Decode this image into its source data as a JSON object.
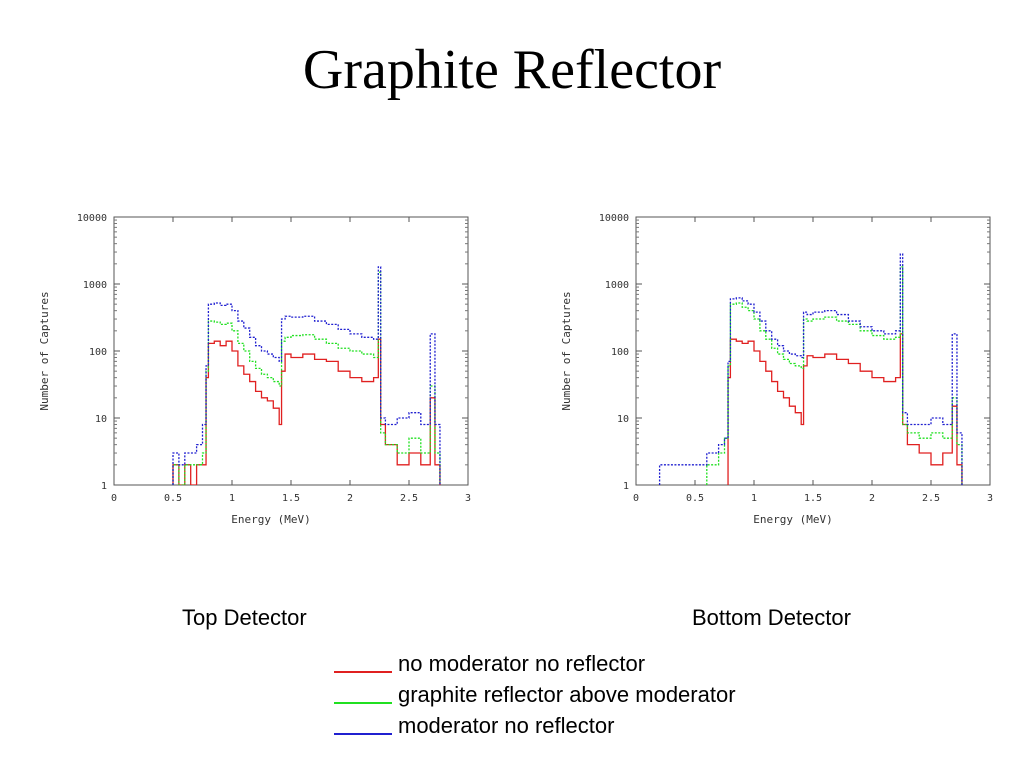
{
  "title": "Graphite Reflector",
  "captions": {
    "top": "Top Detector",
    "bottom": "Bottom Detector"
  },
  "legend": [
    {
      "label": "no moderator no reflector",
      "color": "#e02020",
      "swatch_text": "____"
    },
    {
      "label": "graphite reflector above moderator",
      "color": "#20e020",
      "swatch_text": "____"
    },
    {
      "label": "moderator no reflector",
      "color": "#2020d0",
      "swatch_text": "____"
    }
  ],
  "chart_data": [
    {
      "type": "line",
      "step": true,
      "name": "Top Detector",
      "xlabel": "Energy (MeV)",
      "ylabel": "Number of Captures",
      "xlim": [
        0,
        3
      ],
      "ylim": [
        1,
        10000
      ],
      "yscale": "log",
      "xticks": [
        "0",
        "0.5",
        "1",
        "1.5",
        "2",
        "2.5",
        "3"
      ],
      "yticks": [
        "1",
        "10",
        "100",
        "1000",
        "10000"
      ],
      "series": [
        {
          "color": "#e02020",
          "dash": "solid",
          "x": [
            0.5,
            0.55,
            0.6,
            0.65,
            0.7,
            0.75,
            0.78,
            0.8,
            0.85,
            0.9,
            0.95,
            1.0,
            1.05,
            1.1,
            1.15,
            1.2,
            1.25,
            1.3,
            1.35,
            1.4,
            1.42,
            1.45,
            1.5,
            1.6,
            1.7,
            1.8,
            1.9,
            2.0,
            2.1,
            2.2,
            2.24,
            2.26,
            2.3,
            2.4,
            2.5,
            2.6,
            2.68,
            2.72
          ],
          "y": [
            2,
            1,
            2,
            1,
            2,
            2,
            40,
            130,
            140,
            120,
            140,
            100,
            60,
            45,
            35,
            25,
            20,
            18,
            14,
            8,
            50,
            90,
            80,
            90,
            75,
            70,
            50,
            40,
            35,
            40,
            150,
            8,
            4,
            2,
            3,
            2,
            20,
            2
          ]
        },
        {
          "color": "#20e020",
          "dash": "dotted",
          "x": [
            0.5,
            0.55,
            0.6,
            0.65,
            0.7,
            0.75,
            0.78,
            0.8,
            0.85,
            0.9,
            0.95,
            1.0,
            1.05,
            1.1,
            1.15,
            1.2,
            1.25,
            1.3,
            1.35,
            1.4,
            1.42,
            1.45,
            1.5,
            1.6,
            1.7,
            1.8,
            1.9,
            2.0,
            2.1,
            2.2,
            2.24,
            2.26,
            2.3,
            2.4,
            2.5,
            2.6,
            2.68,
            2.72
          ],
          "y": [
            2,
            1,
            2,
            2,
            2,
            3,
            50,
            280,
            270,
            250,
            260,
            200,
            130,
            100,
            70,
            55,
            45,
            40,
            35,
            30,
            140,
            160,
            170,
            175,
            150,
            130,
            110,
            100,
            90,
            80,
            1500,
            6,
            4,
            3,
            5,
            3,
            30,
            3
          ]
        },
        {
          "color": "#2020d0",
          "dash": "dotted",
          "x": [
            0.5,
            0.55,
            0.6,
            0.65,
            0.7,
            0.75,
            0.78,
            0.8,
            0.85,
            0.9,
            0.95,
            1.0,
            1.05,
            1.1,
            1.15,
            1.2,
            1.25,
            1.3,
            1.35,
            1.4,
            1.42,
            1.45,
            1.5,
            1.6,
            1.7,
            1.8,
            1.9,
            2.0,
            2.1,
            2.2,
            2.24,
            2.26,
            2.3,
            2.4,
            2.5,
            2.6,
            2.68,
            2.72
          ],
          "y": [
            3,
            2,
            3,
            3,
            4,
            8,
            60,
            500,
            520,
            480,
            500,
            400,
            280,
            220,
            160,
            120,
            100,
            90,
            80,
            70,
            300,
            330,
            320,
            330,
            280,
            250,
            210,
            180,
            160,
            150,
            1800,
            10,
            8,
            10,
            12,
            8,
            180,
            8
          ]
        }
      ]
    },
    {
      "type": "line",
      "step": true,
      "name": "Bottom Detector",
      "xlabel": "Energy (MeV)",
      "ylabel": "Number of Captures",
      "xlim": [
        0,
        3
      ],
      "ylim": [
        1,
        10000
      ],
      "yscale": "log",
      "xticks": [
        "0",
        "0.5",
        "1",
        "1.5",
        "2",
        "2.5",
        "3"
      ],
      "yticks": [
        "1",
        "10",
        "100",
        "1000",
        "10000"
      ],
      "series": [
        {
          "color": "#e02020",
          "dash": "solid",
          "x": [
            0.78,
            0.8,
            0.85,
            0.9,
            0.95,
            1.0,
            1.05,
            1.1,
            1.15,
            1.2,
            1.25,
            1.3,
            1.35,
            1.4,
            1.42,
            1.45,
            1.5,
            1.6,
            1.7,
            1.8,
            1.9,
            2.0,
            2.1,
            2.2,
            2.24,
            2.26,
            2.3,
            2.4,
            2.5,
            2.6,
            2.68,
            2.72
          ],
          "y": [
            40,
            150,
            140,
            130,
            140,
            100,
            70,
            50,
            35,
            25,
            20,
            15,
            12,
            8,
            60,
            85,
            80,
            90,
            75,
            65,
            50,
            40,
            35,
            40,
            180,
            8,
            4,
            3,
            2,
            3,
            15,
            2
          ]
        },
        {
          "color": "#20e020",
          "dash": "dotted",
          "x": [
            0.6,
            0.65,
            0.7,
            0.75,
            0.78,
            0.8,
            0.85,
            0.9,
            0.95,
            1.0,
            1.05,
            1.1,
            1.15,
            1.2,
            1.25,
            1.3,
            1.35,
            1.4,
            1.42,
            1.45,
            1.5,
            1.6,
            1.7,
            1.8,
            1.9,
            2.0,
            2.1,
            2.2,
            2.24,
            2.26,
            2.3,
            2.4,
            2.5,
            2.6,
            2.68,
            2.72
          ],
          "y": [
            2,
            2,
            3,
            5,
            60,
            500,
            520,
            450,
            400,
            300,
            200,
            150,
            110,
            90,
            75,
            65,
            60,
            55,
            300,
            280,
            300,
            320,
            280,
            250,
            200,
            170,
            150,
            160,
            1800,
            8,
            6,
            5,
            6,
            5,
            20,
            4
          ]
        },
        {
          "color": "#2020d0",
          "dash": "dotted",
          "x": [
            0.2,
            0.3,
            0.4,
            0.5,
            0.55,
            0.6,
            0.65,
            0.7,
            0.75,
            0.78,
            0.8,
            0.85,
            0.9,
            0.95,
            1.0,
            1.05,
            1.1,
            1.15,
            1.2,
            1.25,
            1.3,
            1.35,
            1.4,
            1.42,
            1.45,
            1.5,
            1.6,
            1.7,
            1.8,
            1.9,
            2.0,
            2.1,
            2.2,
            2.24,
            2.26,
            2.3,
            2.4,
            2.5,
            2.6,
            2.68,
            2.72
          ],
          "y": [
            2,
            2,
            2,
            2,
            2,
            3,
            3,
            4,
            5,
            70,
            600,
            620,
            560,
            500,
            380,
            280,
            200,
            150,
            120,
            100,
            90,
            85,
            80,
            380,
            350,
            380,
            400,
            350,
            280,
            230,
            200,
            180,
            200,
            2800,
            12,
            8,
            8,
            10,
            8,
            180,
            6
          ]
        }
      ]
    }
  ]
}
